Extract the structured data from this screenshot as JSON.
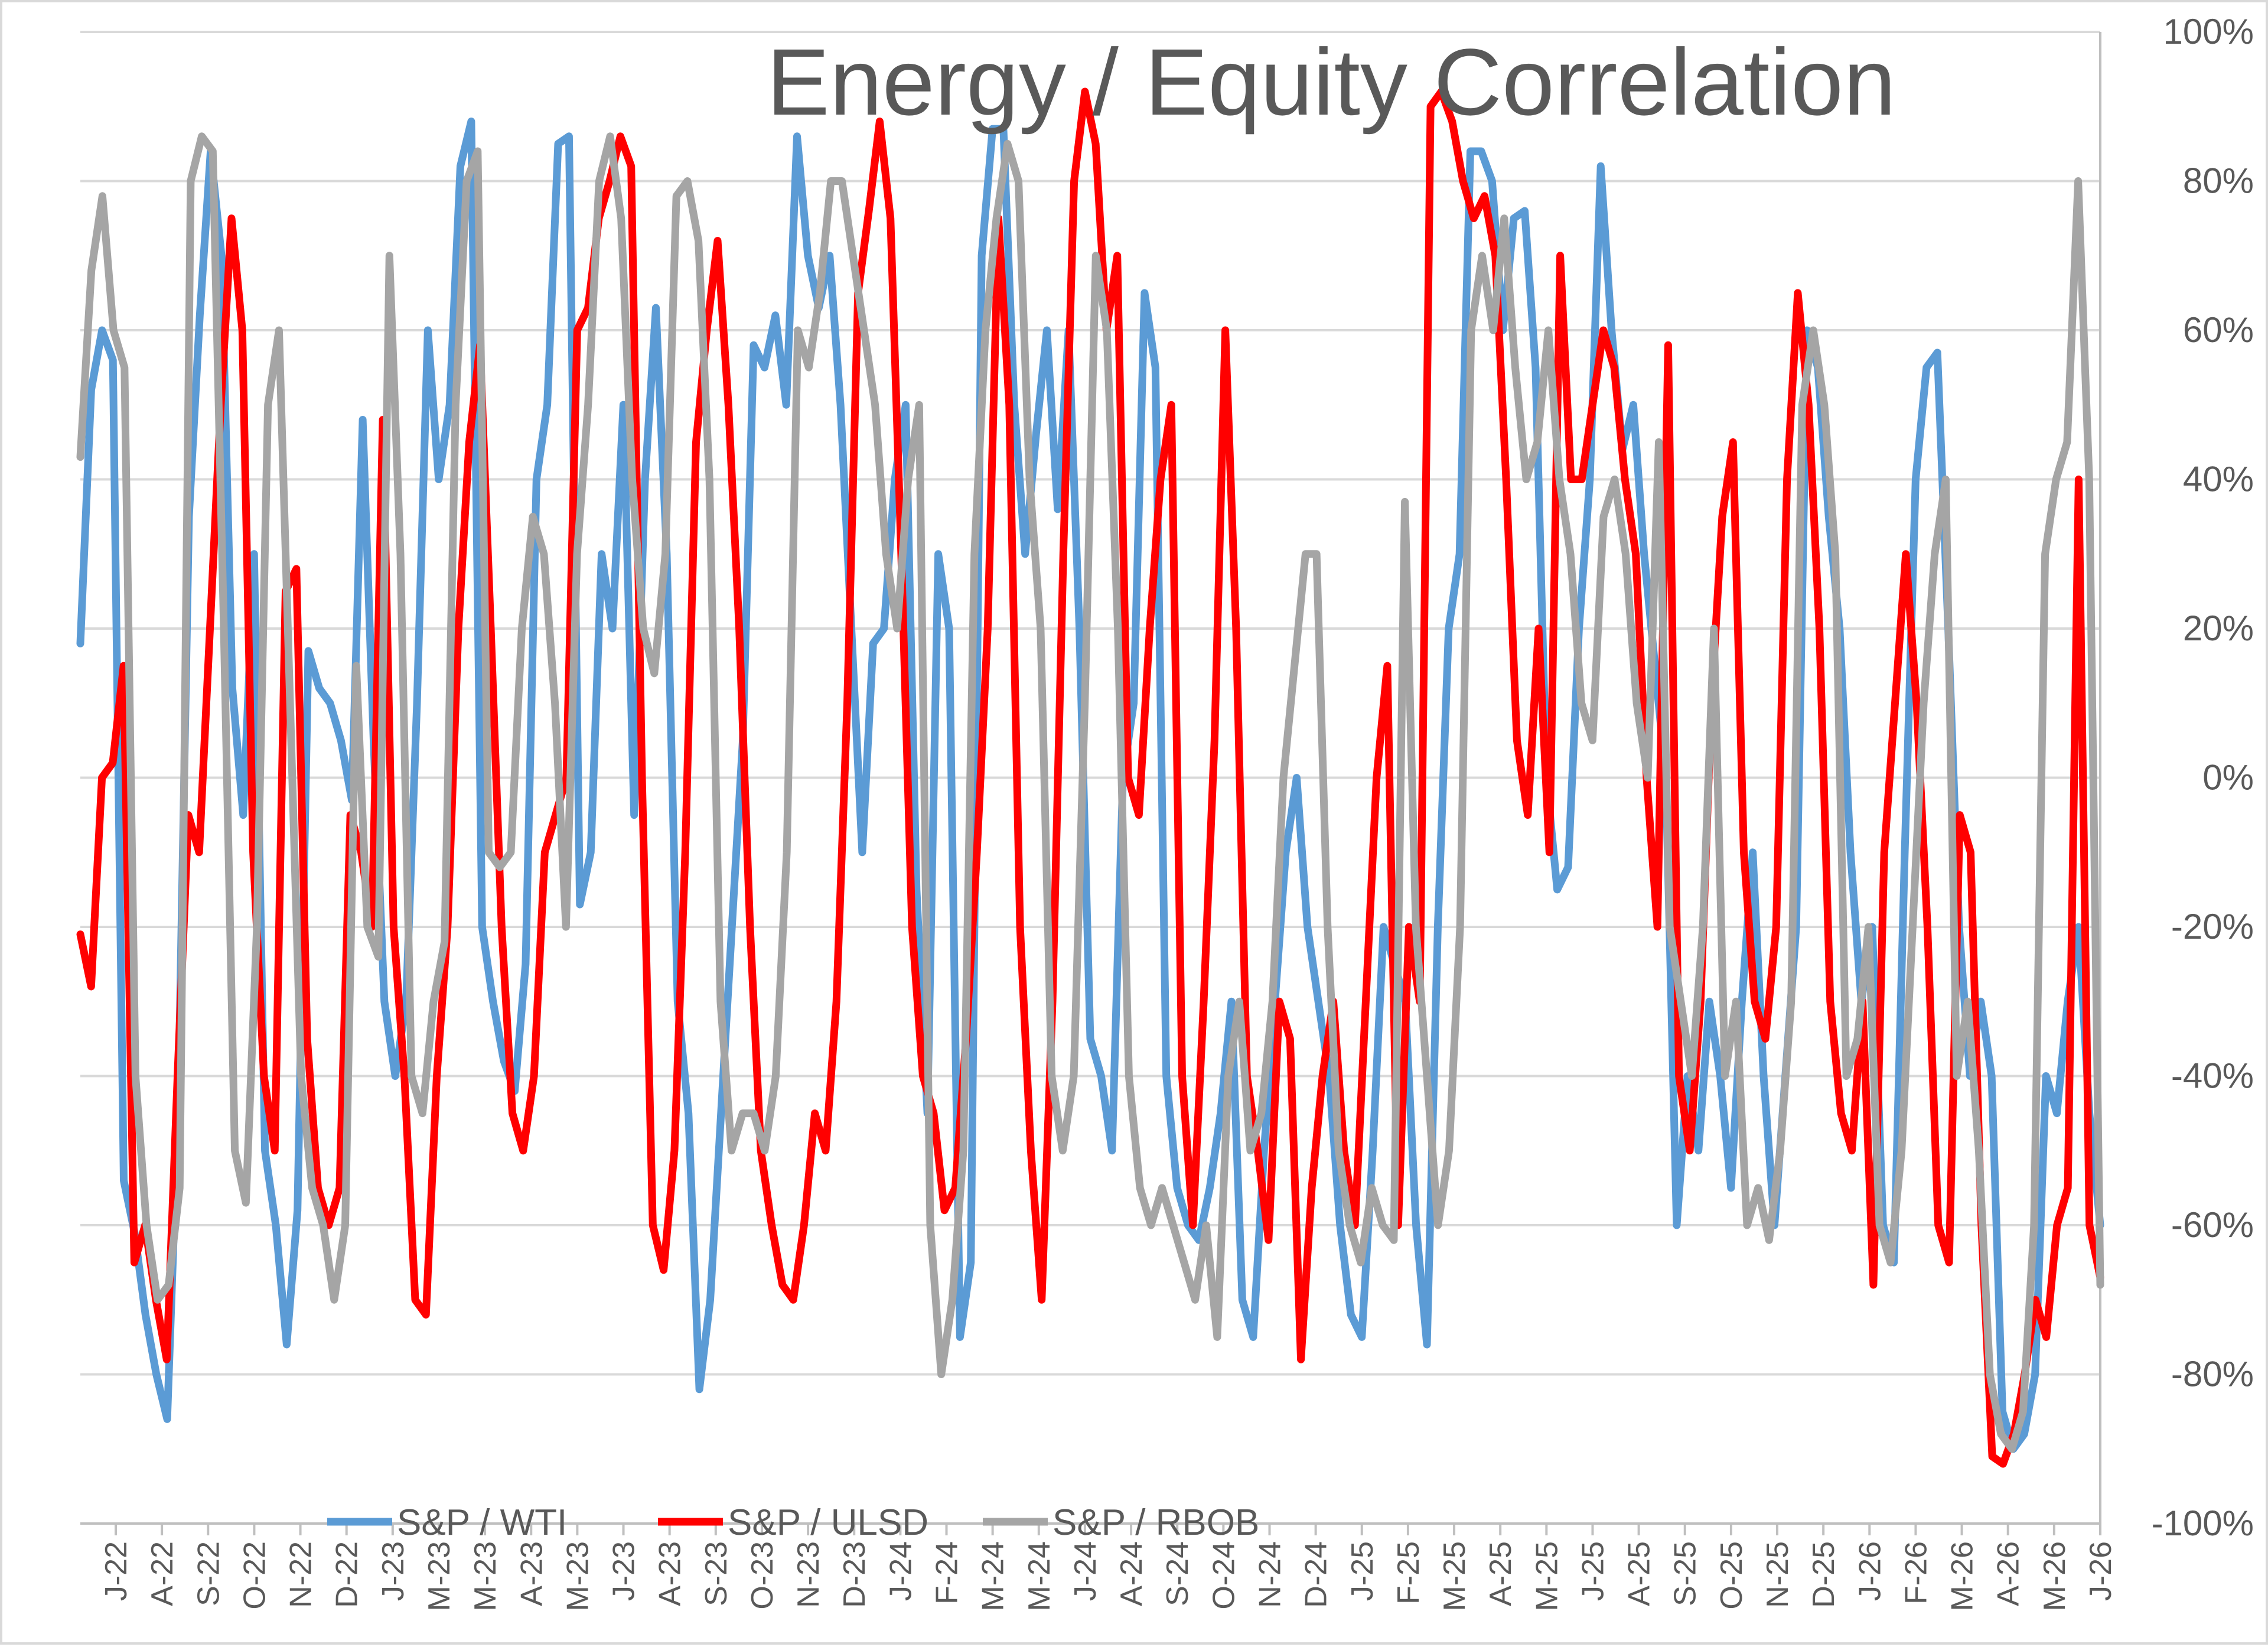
{
  "chart_data": {
    "type": "line",
    "title": "Energy / Equity Correlation",
    "xlabel": "",
    "ylabel": "",
    "ylim": [
      -100,
      100
    ],
    "y_axis_position": "right",
    "y_ticks": [
      100,
      80,
      60,
      40,
      20,
      0,
      -20,
      -40,
      -60,
      -80,
      -100
    ],
    "y_tick_labels": [
      "100%",
      "80%",
      "60%",
      "40%",
      "20%",
      "0%",
      "-20%",
      "-40%",
      "-60%",
      "-80%",
      "-100%"
    ],
    "x_tick_labels": [
      "J-22",
      "A-22",
      "S-22",
      "O-22",
      "N-22",
      "D-22",
      "J-23",
      "M-23",
      "M-23",
      "A-23",
      "M-23",
      "J-23",
      "A-23",
      "S-23",
      "O-23",
      "N-23",
      "D-23",
      "J-24",
      "F-24",
      "M-24",
      "M-24",
      "J-24",
      "A-24",
      "S-24",
      "O-24",
      "N-24",
      "D-24",
      "J-25",
      "F-25",
      "M-25",
      "A-25",
      "M-25",
      "J-25",
      "A-25",
      "S-25",
      "O-25",
      "N-25",
      "D-25",
      "J-26",
      "F-26",
      "M-26",
      "A-26",
      "M-26",
      "J-26"
    ],
    "grid": true,
    "legend_placement": "bottom",
    "series": [
      {
        "name": "S&P / WTI",
        "color": "#5b9bd5",
        "values": [
          18,
          52,
          60,
          56,
          -54,
          -61,
          -72,
          -80,
          -86,
          -45,
          35,
          62,
          84,
          70,
          12,
          -5,
          30,
          -50,
          -60,
          -76,
          -58,
          17,
          12,
          10,
          5,
          -3,
          48,
          5,
          -30,
          -40,
          -30,
          10,
          60,
          40,
          50,
          82,
          88,
          -20,
          -30,
          -38,
          -42,
          -25,
          40,
          50,
          85,
          86,
          -17,
          -10,
          30,
          20,
          50,
          -5,
          40,
          63,
          30,
          -30,
          -45,
          -82,
          -70,
          -45,
          -20,
          5,
          58,
          55,
          62,
          50,
          86,
          70,
          63,
          70,
          50,
          20,
          -10,
          18,
          20,
          40,
          50,
          -15,
          -45,
          30,
          20,
          -75,
          -65,
          70,
          87,
          87,
          50,
          30,
          46,
          60,
          36,
          60,
          20,
          -35,
          -40,
          -50,
          0,
          10,
          65,
          55,
          -40,
          -55,
          -60,
          -62,
          -55,
          -45,
          -30,
          -70,
          -75,
          -50,
          -30,
          -10,
          0,
          -20,
          -30,
          -40,
          -60,
          -72,
          -75,
          -50,
          -20,
          -25,
          -30,
          -60,
          -76,
          -20,
          20,
          30,
          84,
          84,
          80,
          60,
          75,
          76,
          55,
          0,
          -15,
          -12,
          20,
          40,
          82,
          60,
          44,
          50,
          30,
          15,
          0,
          -60,
          -40,
          -50,
          -30,
          -40,
          -55,
          -30,
          -10,
          -40,
          -60,
          -40,
          -20,
          60,
          55,
          35,
          20,
          -10,
          -30,
          -20,
          -60,
          -65,
          -10,
          40,
          55,
          57,
          20,
          -20,
          -40,
          -30,
          -40,
          -85,
          -90,
          -88,
          -80,
          -40,
          -45,
          -30,
          -20,
          -45,
          -60
        ]
      },
      {
        "name": "S&P / ULSD",
        "color": "#ff0000",
        "values": [
          -21,
          -28,
          0,
          2,
          15,
          -65,
          -60,
          -70,
          -78,
          -40,
          -5,
          -10,
          20,
          50,
          75,
          60,
          -10,
          -40,
          -50,
          25,
          28,
          -35,
          -55,
          -60,
          -55,
          -5,
          -10,
          -20,
          48,
          -20,
          -40,
          -70,
          -72,
          -40,
          -20,
          20,
          45,
          58,
          20,
          -20,
          -45,
          -50,
          -40,
          -10,
          -5,
          0,
          60,
          63,
          75,
          80,
          86,
          82,
          0,
          -60,
          -66,
          -50,
          -10,
          45,
          60,
          72,
          50,
          20,
          -20,
          -50,
          -60,
          -68,
          -70,
          -60,
          -45,
          -50,
          -30,
          10,
          65,
          76,
          88,
          75,
          30,
          -20,
          -40,
          -45,
          -58,
          -55,
          -35,
          -10,
          20,
          75,
          50,
          -20,
          -50,
          -70,
          -30,
          30,
          80,
          92,
          85,
          60,
          70,
          0,
          -5,
          20,
          40,
          50,
          -40,
          -60,
          -30,
          5,
          60,
          20,
          -40,
          -50,
          -62,
          -30,
          -35,
          -78,
          -55,
          -40,
          -30,
          -50,
          -60,
          -30,
          0,
          15,
          -60,
          -20,
          -30,
          90,
          92,
          88,
          80,
          75,
          78,
          70,
          40,
          5,
          -5,
          20,
          -10,
          70,
          40,
          40,
          50,
          60,
          55,
          40,
          30,
          0,
          -20,
          58,
          -40,
          -50,
          -30,
          10,
          35,
          45,
          -10,
          -30,
          -35,
          -20,
          40,
          65,
          50,
          20,
          -30,
          -45,
          -50,
          -30,
          -68,
          -10,
          10,
          30,
          10,
          -20,
          -60,
          -65,
          -5,
          -10,
          -60,
          -91,
          -92,
          -88,
          -80,
          -70,
          -75,
          -60,
          -55,
          40,
          -60,
          -67
        ]
      },
      {
        "name": "S&P / RBOB",
        "color": "#a5a5a5",
        "values": [
          43,
          68,
          78,
          60,
          55,
          -40,
          -60,
          -70,
          -68,
          -55,
          80,
          86,
          84,
          20,
          -50,
          -57,
          -20,
          50,
          60,
          10,
          -40,
          -55,
          -60,
          -70,
          -60,
          15,
          -20,
          -24,
          70,
          30,
          -40,
          -45,
          -30,
          -22,
          50,
          80,
          84,
          -10,
          -12,
          -10,
          20,
          35,
          30,
          10,
          -20,
          30,
          50,
          80,
          86,
          75,
          40,
          20,
          14,
          30,
          78,
          80,
          72,
          40,
          -30,
          -50,
          -45,
          -45,
          -50,
          -40,
          -10,
          60,
          55,
          65,
          80,
          80,
          70,
          60,
          50,
          30,
          20,
          40,
          50,
          -60,
          -80,
          -70,
          -50,
          30,
          60,
          75,
          85,
          80,
          40,
          20,
          -40,
          -50,
          -40,
          10,
          70,
          60,
          20,
          -40,
          -55,
          -60,
          -55,
          -60,
          -65,
          -70,
          -60,
          -75,
          -40,
          -30,
          -50,
          -45,
          -30,
          0,
          15,
          30,
          30,
          -20,
          -50,
          -60,
          -65,
          -55,
          -60,
          -62,
          37,
          -20,
          -40,
          -60,
          -50,
          -20,
          60,
          70,
          60,
          75,
          55,
          40,
          45,
          60,
          40,
          30,
          10,
          5,
          35,
          40,
          30,
          10,
          0,
          45,
          -20,
          -30,
          -40,
          -20,
          20,
          -40,
          -30,
          -60,
          -55,
          -62,
          -50,
          -30,
          50,
          60,
          50,
          30,
          -40,
          -35,
          -20,
          -60,
          -65,
          -50,
          -20,
          10,
          30,
          40,
          -40,
          -30,
          -50,
          -80,
          -88,
          -90,
          -85,
          -60,
          30,
          40,
          45,
          80,
          40,
          -68
        ]
      }
    ]
  }
}
